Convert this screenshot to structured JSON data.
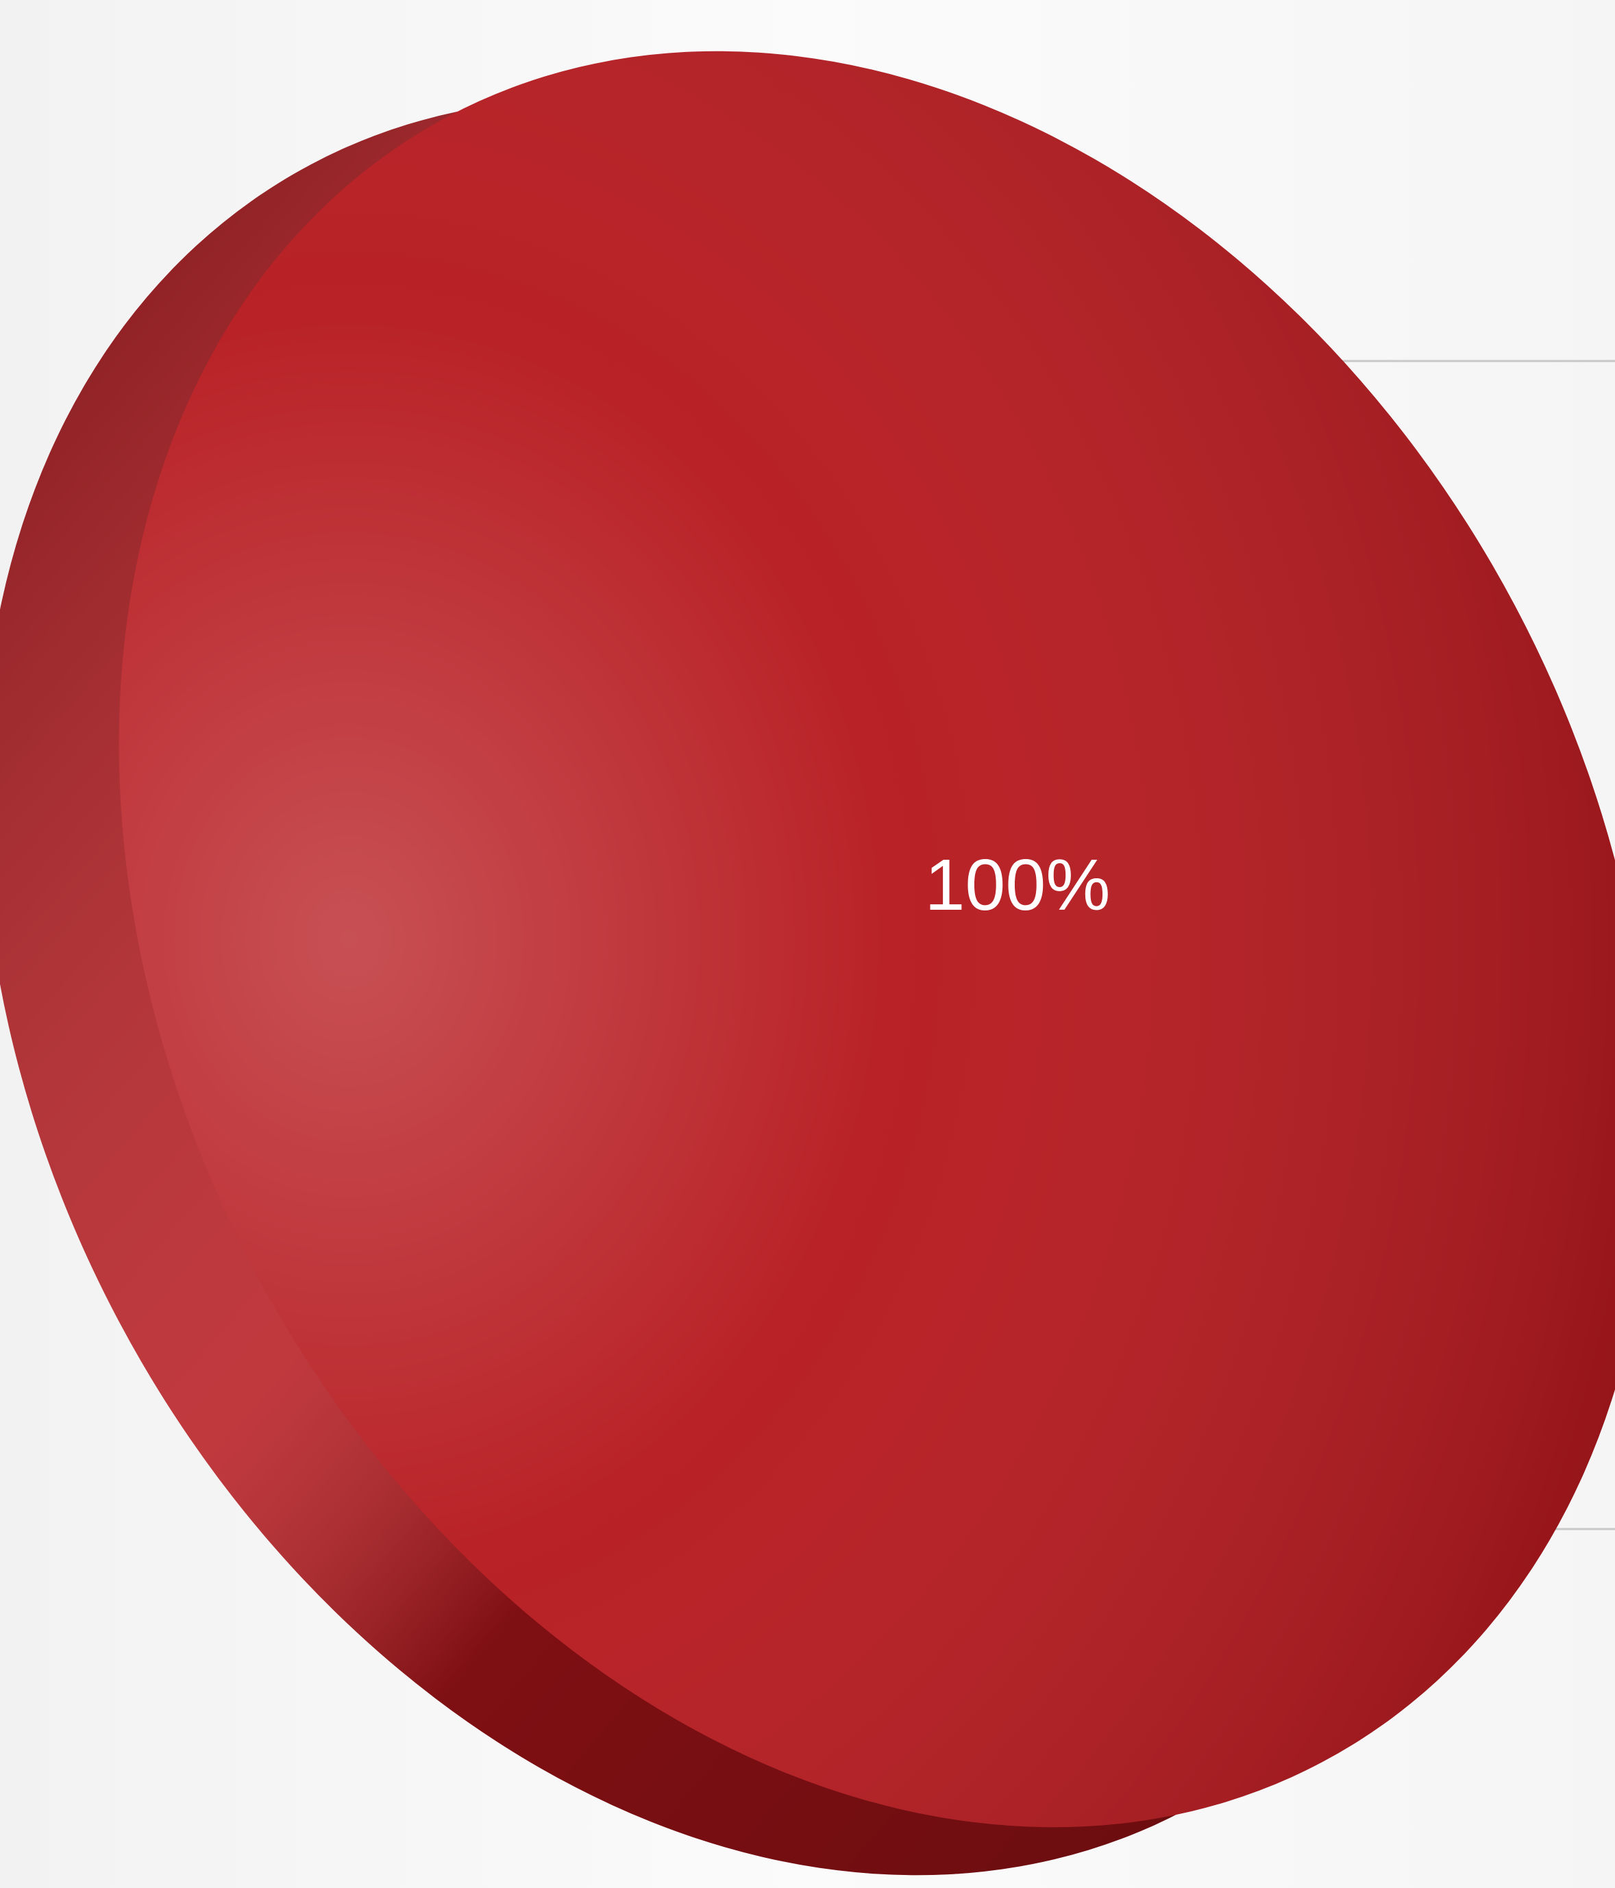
{
  "chart_data": {
    "type": "pie",
    "values": [
      100
    ],
    "value_labels": [
      "100%"
    ],
    "colors": [
      "#b5161b"
    ]
  }
}
